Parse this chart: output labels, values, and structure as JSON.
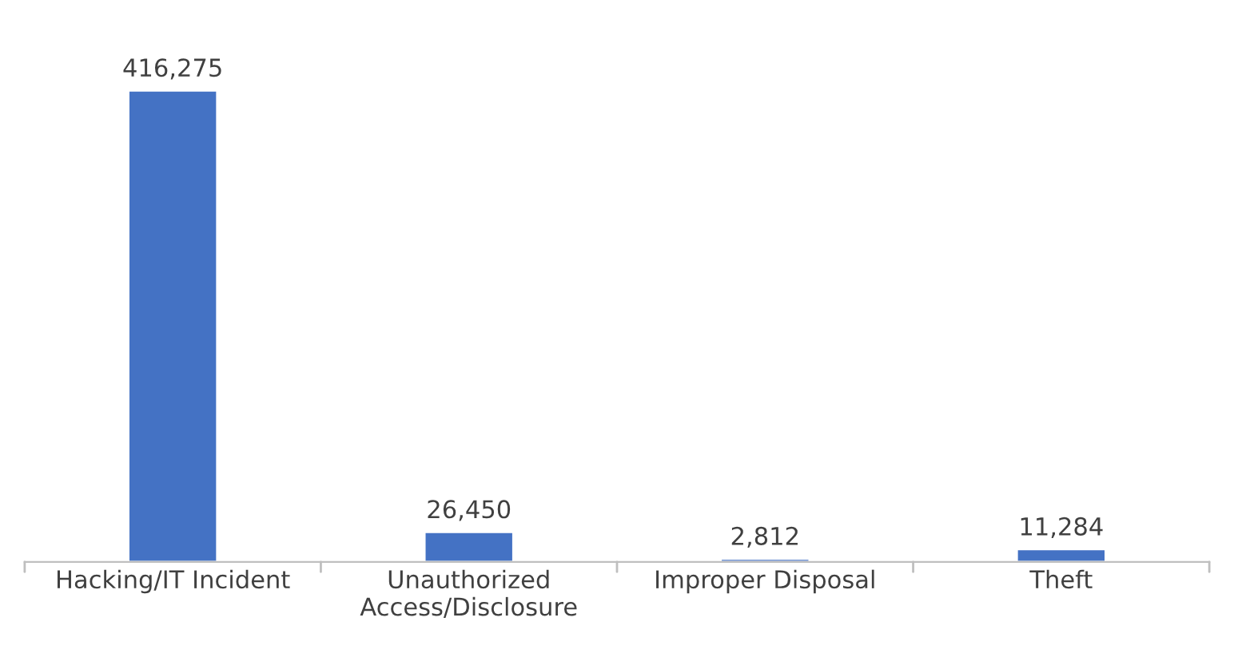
{
  "chart_data": {
    "type": "bar",
    "categories": [
      "Hacking/IT Incident",
      "Unauthorized\nAccess/Disclosure",
      "Improper Disposal",
      "Theft"
    ],
    "values": [
      416275,
      26450,
      2812,
      11284
    ],
    "color": "#4472c4",
    "value_labels": [
      "416,275",
      "26,450",
      "2,812",
      "11,284"
    ],
    "grid": false,
    "legend": false
  }
}
